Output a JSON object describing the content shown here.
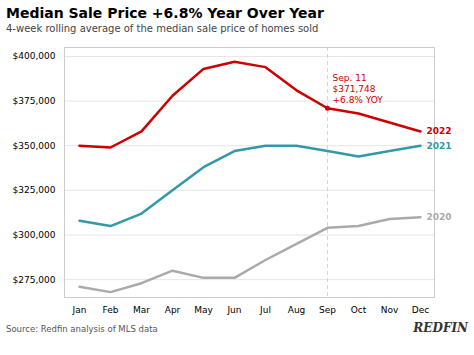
{
  "chart_data": {
    "type": "line",
    "title": "Median Sale Price +6.8% Year Over Year",
    "subtitle": "4-week rolling average of the median sale price of homes sold",
    "source": "Source: Redfin analysis of MLS data",
    "credit": "REDFIN",
    "categories": [
      "Jan",
      "Feb",
      "Mar",
      "Apr",
      "May",
      "Jun",
      "Jul",
      "Aug",
      "Sep",
      "Oct",
      "Nov",
      "Dec"
    ],
    "series": [
      {
        "name": "2020",
        "color": "#aaaaaa",
        "values": [
          271000,
          268000,
          273000,
          280000,
          276000,
          276000,
          286000,
          295000,
          304000,
          305000,
          309000,
          310000
        ]
      },
      {
        "name": "2021",
        "color": "#3399aa",
        "values": [
          308000,
          305000,
          312000,
          325000,
          338000,
          347000,
          350000,
          350000,
          347000,
          344000,
          347000,
          350000
        ]
      },
      {
        "name": "2022",
        "color": "#cc0000",
        "values": [
          350000,
          349000,
          358000,
          378000,
          393000,
          397000,
          394000,
          381000,
          371000,
          368000,
          363000,
          358000
        ]
      }
    ],
    "ylim": [
      265000,
      405000
    ],
    "yticks": [
      {
        "value": 275000,
        "label": "$275,000"
      },
      {
        "value": 300000,
        "label": "$300,000"
      },
      {
        "value": 325000,
        "label": "$325,000"
      },
      {
        "value": 350000,
        "label": "$350,000"
      },
      {
        "value": 375000,
        "label": "$375,000"
      },
      {
        "value": 400000,
        "label": "$400,000"
      }
    ],
    "grid": true,
    "annotations": [
      {
        "text": "Sep. 11\n$371,748\n+6.8% YOY",
        "x": "Sep",
        "y": 371000,
        "color": "#cc0000"
      }
    ]
  }
}
